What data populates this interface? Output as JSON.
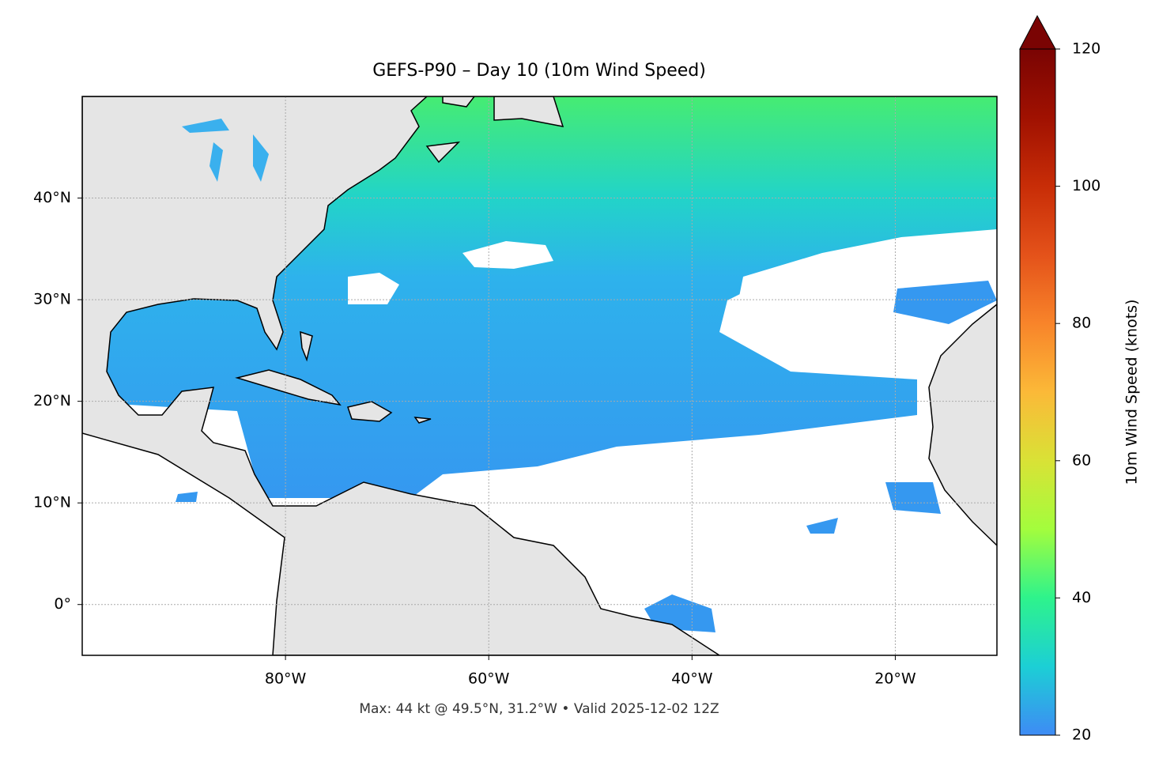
{
  "chart_data": {
    "type": "map",
    "title": "GEFS-P90 – Day 10 (10m Wind Speed)",
    "footnote": "Max: 44 kt @ 49.5°N, 31.2°W • Valid 2025-12-02 12Z",
    "xlim": [
      -100,
      -10
    ],
    "ylim": [
      -5,
      50
    ],
    "xticks": [
      {
        "value": -80,
        "label": "80°W"
      },
      {
        "value": -60,
        "label": "60°W"
      },
      {
        "value": -40,
        "label": "40°W"
      },
      {
        "value": -20,
        "label": "20°W"
      }
    ],
    "yticks": [
      {
        "value": 0,
        "label": "0°"
      },
      {
        "value": 10,
        "label": "10°N"
      },
      {
        "value": 20,
        "label": "20°N"
      },
      {
        "value": 30,
        "label": "30°N"
      },
      {
        "value": 40,
        "label": "40°N"
      }
    ],
    "grid": true,
    "colorbar": {
      "label": "10m Wind Speed (knots)",
      "lim": [
        20,
        120
      ],
      "ticks": [
        20,
        40,
        60,
        80,
        100,
        120
      ],
      "extend": "max"
    }
  }
}
